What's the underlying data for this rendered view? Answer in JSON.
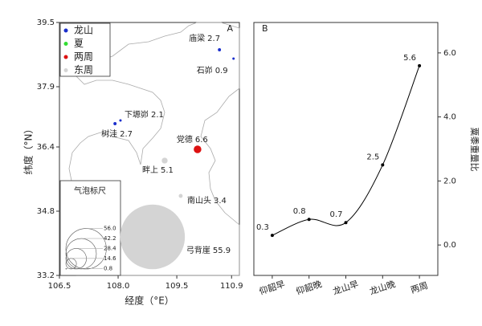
{
  "chart_data": [
    {
      "type": "bubble",
      "panel": "A",
      "x_label": "经度（°E）",
      "y_label": "纬度（°N）",
      "xlim": [
        106.5,
        111.1
      ],
      "xticks": [
        106.5,
        {
          "value": 108,
          "label": "108.0"
        },
        109.5,
        110.9
      ],
      "ylim": [
        33.2,
        39.5
      ],
      "yticks": [
        33.2,
        34.8,
        36.4,
        37.9,
        39.5
      ],
      "series": [
        {
          "name": "龙山",
          "color": "#1a2ecc",
          "labels": [
            "庙梁",
            "石峁",
            "下塬峁",
            "树洼"
          ],
          "x": [
            110.59,
            110.95,
            108.06,
            107.92
          ],
          "values": [
            38.82,
            38.6,
            37.06,
            36.98
          ],
          "sizes": [
            2.7,
            0.9,
            2.1,
            2.7
          ]
        },
        {
          "name": "夏",
          "color": "#33dd33",
          "labels": [],
          "x": [],
          "values": [],
          "sizes": []
        },
        {
          "name": "两周",
          "color": "#dd1111",
          "labels": [
            "党德"
          ],
          "x": [
            110.03
          ],
          "values": [
            36.34
          ],
          "sizes": [
            6.6
          ]
        },
        {
          "name": "东周",
          "color": "#d4d4d4",
          "labels": [
            "畔上",
            "南山头",
            "弓背崖"
          ],
          "x": [
            109.19,
            109.6,
            108.88
          ],
          "values": [
            36.06,
            35.18,
            34.16
          ],
          "sizes": [
            5.1,
            3.4,
            55.9
          ]
        }
      ],
      "size_legend": {
        "title": "气泡标尺",
        "values": [
          {
            "value": 56,
            "label": "56.0"
          },
          42.2,
          28.4,
          14.6,
          0.8
        ]
      }
    },
    {
      "type": "line",
      "panel": "B",
      "y_label": "粟黍重量比",
      "color": "#000000",
      "categories": [
        "仰韶早",
        "仰韶晚",
        "龙山早",
        "龙山晚",
        "两周"
      ],
      "values": [
        0.3,
        0.8,
        0.7,
        2.5,
        5.6
      ],
      "ylim": [
        -0.95,
        6.95
      ],
      "yticks": [
        {
          "value": 0,
          "label": "0.0"
        },
        {
          "value": 2,
          "label": "2.0"
        },
        {
          "value": 4,
          "label": "4.0"
        },
        {
          "value": 6,
          "label": "6.0"
        }
      ]
    }
  ]
}
